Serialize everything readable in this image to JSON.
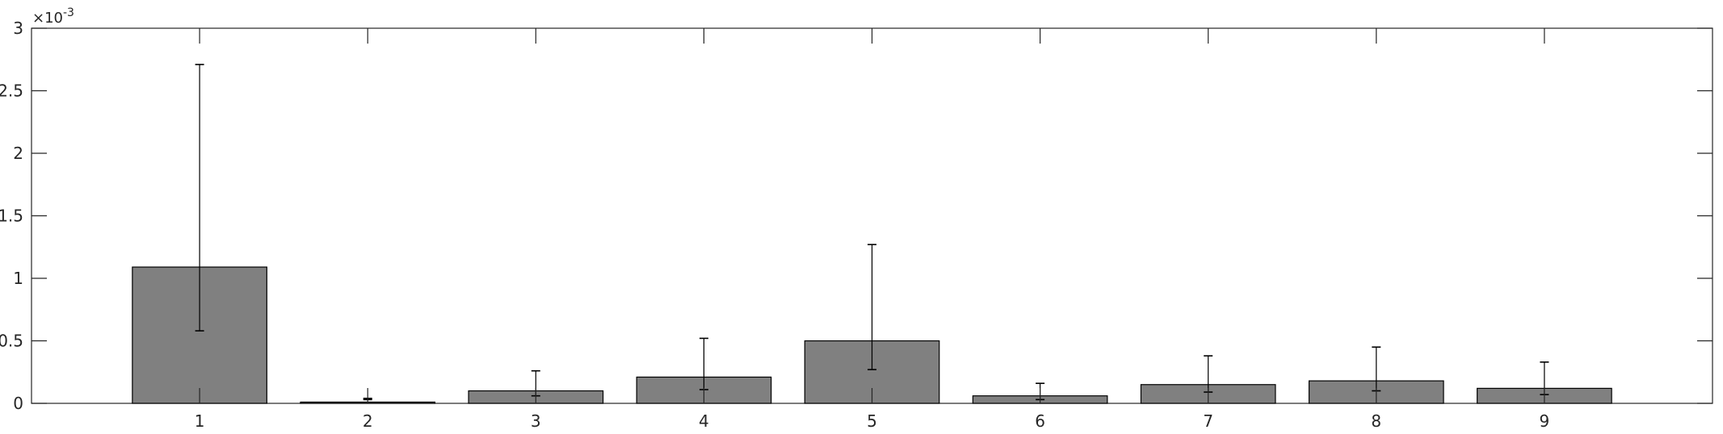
{
  "chart_data": {
    "type": "bar",
    "categories": [
      "1",
      "2",
      "3",
      "4",
      "5",
      "6",
      "7",
      "8",
      "9"
    ],
    "series": [
      {
        "values": [
          0.00109,
          1e-05,
          0.0001,
          0.00021,
          0.0005,
          6e-05,
          0.00015,
          0.00018,
          0.00012
        ],
        "error_low": [
          0.00058,
          3e-05,
          6e-05,
          0.00011,
          0.00027,
          3e-05,
          9e-05,
          0.0001,
          7e-05
        ],
        "error_high": [
          0.00271,
          4e-05,
          0.00026,
          0.00052,
          0.00127,
          0.00016,
          0.00038,
          0.00045,
          0.00033
        ]
      }
    ],
    "ylim": [
      0,
      0.003
    ],
    "y_ticks": [
      0,
      0.5,
      1,
      1.5,
      2,
      2.5,
      3
    ],
    "y_tick_labels": [
      "0",
      "0.5",
      "1",
      "1.5",
      "2",
      "2.5",
      "3"
    ],
    "y_exponent_label": "×10",
    "y_exponent_power": "-3",
    "title": "",
    "xlabel": "",
    "ylabel": "",
    "grid": false,
    "bar_color": "#808080",
    "edge_color": "#000000"
  }
}
